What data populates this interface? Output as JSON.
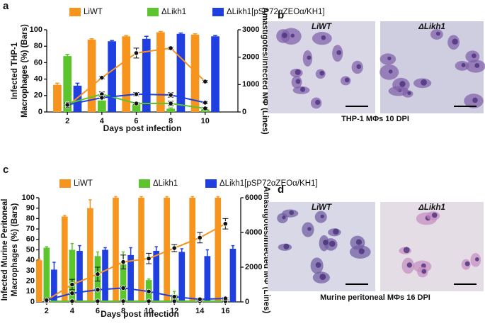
{
  "chart_data": [
    {
      "type": "bar",
      "panel": "a",
      "ylabel": [
        "Infected THP-1",
        "Macrophages (%) (Bars)"
      ],
      "y2label": "Amastigotes/Infected MΦ (Lines)",
      "xlabel": "Days post  infection",
      "x": [
        2,
        4,
        6,
        8,
        10
      ],
      "xlim": [
        0.8,
        11.9
      ],
      "xticks": [
        2,
        4,
        6,
        8,
        10
      ],
      "ylim": [
        0,
        100
      ],
      "yticks": [
        0,
        20,
        40,
        60,
        80,
        100
      ],
      "y2lim": [
        0,
        3000
      ],
      "y2ticks": [
        0,
        1000,
        2000,
        3000
      ],
      "series": [
        {
          "name": "LiWT",
          "color": "#f7941d",
          "values": [
            33,
            88,
            92,
            97,
            94
          ],
          "errors": [
            2,
            1,
            1,
            1,
            1
          ],
          "line_values": [
            210,
            1250,
            2150,
            2330,
            1110
          ],
          "line_errors": [
            40,
            40,
            180,
            40,
            40
          ]
        },
        {
          "name": "ΔLikh1",
          "color": "#5cc52e",
          "values": [
            68,
            14,
            9,
            4,
            3
          ],
          "errors": [
            2,
            2,
            1,
            1,
            1
          ],
          "line_values": [
            300,
            650,
            310,
            310,
            130
          ],
          "line_errors": [
            40,
            80,
            40,
            80,
            40
          ]
        },
        {
          "name": "ΔLikh1[pSP72αZEOα/KH1]",
          "color": "#1f3fe0",
          "values": [
            32,
            86,
            89,
            95,
            92
          ],
          "errors": [
            3,
            1,
            3,
            1,
            1
          ],
          "line_values": [
            260,
            520,
            650,
            620,
            340
          ],
          "line_errors": [
            40,
            40,
            60,
            80,
            40
          ]
        }
      ]
    },
    {
      "type": "bar",
      "panel": "c",
      "ylabel": [
        "Infected Murine Peritoneal",
        "Macrophages (%) (Bars)"
      ],
      "y2label": "Amastigotes/Infected MΦ (Lines)",
      "xlabel": "Days post  infection",
      "x": [
        2,
        4,
        6,
        8,
        10,
        12,
        14,
        16
      ],
      "xlim": [
        1.4,
        17.2
      ],
      "xticks": [
        2,
        4,
        6,
        8,
        10,
        12,
        14,
        16
      ],
      "ylim": [
        0,
        100
      ],
      "yticks": [
        0,
        10,
        20,
        30,
        40,
        50,
        60,
        70,
        80,
        90,
        100
      ],
      "y2lim": [
        0,
        6000
      ],
      "y2ticks": [
        0,
        2000,
        4000,
        6000
      ],
      "series": [
        {
          "name": "LiWT",
          "color": "#f7941d",
          "values": [
            40,
            82,
            90,
            100,
            100,
            100,
            100,
            100
          ],
          "errors": [
            1,
            1,
            8,
            1,
            1,
            1,
            1,
            1
          ],
          "line_values": [
            100,
            1000,
            1600,
            2300,
            2500,
            3100,
            3700,
            4500
          ],
          "line_errors": [
            100,
            300,
            400,
            400,
            300,
            200,
            300,
            300
          ]
        },
        {
          "name": "ΔLikh1",
          "color": "#5cc52e",
          "values": [
            52,
            50,
            44,
            36,
            21,
            7,
            1,
            1
          ],
          "errors": [
            1,
            6,
            4,
            12,
            1,
            3,
            1,
            1
          ],
          "line_values": [
            30,
            40,
            40,
            40,
            40,
            40,
            40,
            40
          ],
          "line_errors": [
            20,
            20,
            20,
            20,
            20,
            20,
            20,
            20
          ]
        },
        {
          "name": "ΔLikh1[pSP72αZEOα/KH1]",
          "color": "#1f3fe0",
          "values": [
            31,
            49,
            50,
            45,
            49,
            48,
            44,
            51
          ],
          "errors": [
            7,
            5,
            2,
            7,
            4,
            3,
            6,
            3
          ],
          "line_values": [
            100,
            500,
            700,
            800,
            600,
            300,
            150,
            200
          ],
          "line_errors": [
            50,
            50,
            80,
            80,
            80,
            50,
            50,
            50
          ]
        }
      ]
    }
  ],
  "panels": [
    {
      "letter": "b",
      "images": [
        "LiWT",
        "ΔLikh1"
      ],
      "caption": "THP-1 MΦs 10 DPI"
    },
    {
      "letter": "d",
      "images": [
        "LiWT",
        "ΔLikh1"
      ],
      "caption": "Murine peritoneal  MΦs 16 DPI"
    }
  ]
}
